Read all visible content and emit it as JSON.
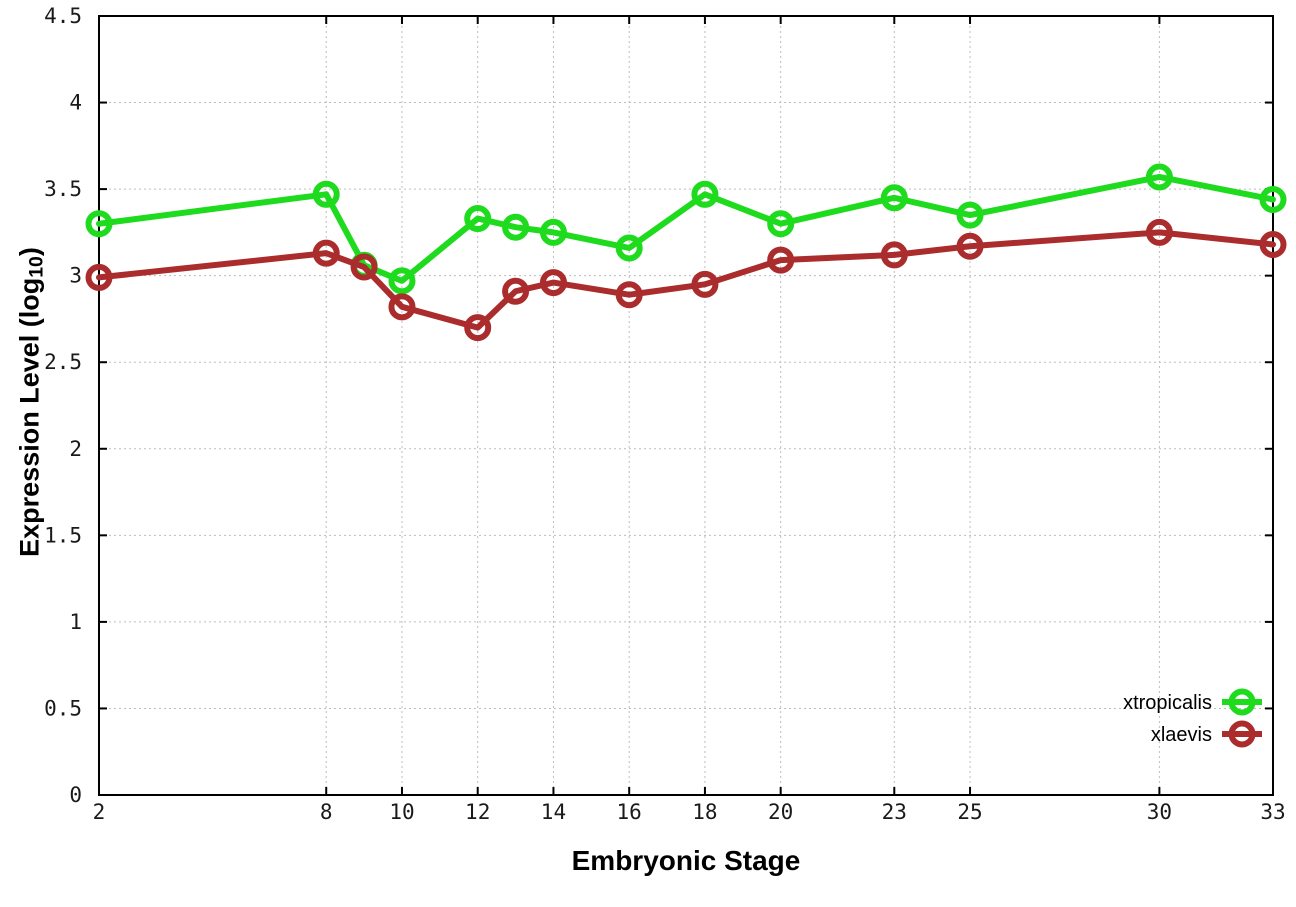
{
  "chart_data": {
    "type": "line",
    "title": "",
    "xlabel": "Embryonic Stage",
    "ylabel": "Expression Level (log10)",
    "ylabel_parts": {
      "main": "Expression Level (log",
      "sub": "10",
      "close": ")"
    },
    "x": [
      2,
      8,
      9,
      10,
      12,
      13,
      14,
      16,
      18,
      20,
      23,
      25,
      30,
      33
    ],
    "xticks": [
      2,
      8,
      10,
      12,
      14,
      16,
      18,
      20,
      23,
      25,
      30,
      33
    ],
    "yticks": [
      0,
      0.5,
      1,
      1.5,
      2,
      2.5,
      3,
      3.5,
      4,
      4.5
    ],
    "xlim": [
      2,
      33
    ],
    "ylim": [
      0,
      4.5
    ],
    "grid": true,
    "marker": "open-circle",
    "legend_position": "bottom-right",
    "series": [
      {
        "name": "xtropicalis",
        "color": "#1edb1e",
        "values": [
          3.3,
          3.47,
          3.06,
          2.97,
          3.33,
          3.28,
          3.25,
          3.16,
          3.47,
          3.3,
          3.45,
          3.35,
          3.57,
          3.44
        ]
      },
      {
        "name": "xlaevis",
        "color": "#ab2c2c",
        "values": [
          2.99,
          3.13,
          3.05,
          2.82,
          2.7,
          2.91,
          2.96,
          2.89,
          2.95,
          3.09,
          3.12,
          3.17,
          3.25,
          3.18
        ]
      }
    ]
  },
  "colors": {
    "background": "#ffffff",
    "axis": "#000000",
    "grid": "#bdbdbd",
    "tick_label": "#1a1a1a"
  }
}
